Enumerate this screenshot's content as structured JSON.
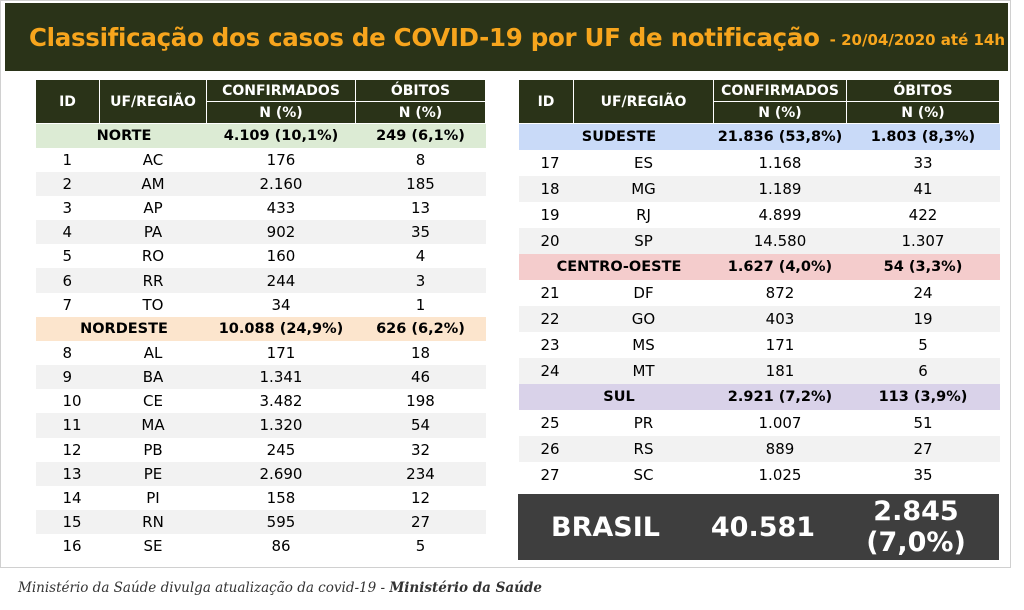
{
  "header": {
    "title": "Classificação dos casos de COVID-19 por UF de notificação",
    "date": "- 20/04/2020 até 14h"
  },
  "columns": {
    "id": "ID",
    "uf": "UF/REGIÃO",
    "confirmed": "CONFIRMADOS",
    "deaths": "ÓBITOS",
    "n_pct": "N (%)"
  },
  "colors": {
    "header_bg": "#2a3318",
    "title_orange": "#f7a51d",
    "norte": "#dcebd4",
    "nordeste": "#fce5cd",
    "sudeste": "#c9daf8",
    "centro_oeste": "#f4cccc",
    "sul": "#d9d2e9",
    "brasil_bg": "#3e3e3e"
  },
  "left_groups": [
    {
      "region": "NORTE",
      "confirmed": "4.109 (10,1%)",
      "deaths": "249 (6,1%)",
      "color": "#dcebd4",
      "rows": [
        {
          "id": "1",
          "uf": "AC",
          "confirmed": "176",
          "deaths": "8"
        },
        {
          "id": "2",
          "uf": "AM",
          "confirmed": "2.160",
          "deaths": "185"
        },
        {
          "id": "3",
          "uf": "AP",
          "confirmed": "433",
          "deaths": "13"
        },
        {
          "id": "4",
          "uf": "PA",
          "confirmed": "902",
          "deaths": "35"
        },
        {
          "id": "5",
          "uf": "RO",
          "confirmed": "160",
          "deaths": "4"
        },
        {
          "id": "6",
          "uf": "RR",
          "confirmed": "244",
          "deaths": "3"
        },
        {
          "id": "7",
          "uf": "TO",
          "confirmed": "34",
          "deaths": "1"
        }
      ]
    },
    {
      "region": "NORDESTE",
      "confirmed": "10.088 (24,9%)",
      "deaths": "626 (6,2%)",
      "color": "#fce5cd",
      "rows": [
        {
          "id": "8",
          "uf": "AL",
          "confirmed": "171",
          "deaths": "18"
        },
        {
          "id": "9",
          "uf": "BA",
          "confirmed": "1.341",
          "deaths": "46"
        },
        {
          "id": "10",
          "uf": "CE",
          "confirmed": "3.482",
          "deaths": "198"
        },
        {
          "id": "11",
          "uf": "MA",
          "confirmed": "1.320",
          "deaths": "54"
        },
        {
          "id": "12",
          "uf": "PB",
          "confirmed": "245",
          "deaths": "32"
        },
        {
          "id": "13",
          "uf": "PE",
          "confirmed": "2.690",
          "deaths": "234"
        },
        {
          "id": "14",
          "uf": "PI",
          "confirmed": "158",
          "deaths": "12"
        },
        {
          "id": "15",
          "uf": "RN",
          "confirmed": "595",
          "deaths": "27"
        },
        {
          "id": "16",
          "uf": "SE",
          "confirmed": "86",
          "deaths": "5"
        }
      ]
    }
  ],
  "right_groups": [
    {
      "region": "SUDESTE",
      "confirmed": "21.836 (53,8%)",
      "deaths": "1.803 (8,3%)",
      "color": "#c9daf8",
      "rows": [
        {
          "id": "17",
          "uf": "ES",
          "confirmed": "1.168",
          "deaths": "33"
        },
        {
          "id": "18",
          "uf": "MG",
          "confirmed": "1.189",
          "deaths": "41"
        },
        {
          "id": "19",
          "uf": "RJ",
          "confirmed": "4.899",
          "deaths": "422"
        },
        {
          "id": "20",
          "uf": "SP",
          "confirmed": "14.580",
          "deaths": "1.307"
        }
      ]
    },
    {
      "region": "CENTRO-OESTE",
      "confirmed": "1.627 (4,0%)",
      "deaths": "54 (3,3%)",
      "color": "#f4cccc",
      "rows": [
        {
          "id": "21",
          "uf": "DF",
          "confirmed": "872",
          "deaths": "24"
        },
        {
          "id": "22",
          "uf": "GO",
          "confirmed": "403",
          "deaths": "19"
        },
        {
          "id": "23",
          "uf": "MS",
          "confirmed": "171",
          "deaths": "5"
        },
        {
          "id": "24",
          "uf": "MT",
          "confirmed": "181",
          "deaths": "6"
        }
      ]
    },
    {
      "region": "SUL",
      "confirmed": "2.921 (7,2%)",
      "deaths": "113 (3,9%)",
      "color": "#d9d2e9",
      "rows": [
        {
          "id": "25",
          "uf": "PR",
          "confirmed": "1.007",
          "deaths": "51"
        },
        {
          "id": "26",
          "uf": "RS",
          "confirmed": "889",
          "deaths": "27"
        },
        {
          "id": "27",
          "uf": "SC",
          "confirmed": "1.025",
          "deaths": "35"
        }
      ]
    }
  ],
  "brasil": {
    "label": "BRASIL",
    "confirmed": "40.581",
    "deaths": "2.845 (7,0%)"
  },
  "caption": {
    "text": "Ministério da Saúde divulga atualização da covid-19 - ",
    "source": "Ministério da Saúde"
  }
}
